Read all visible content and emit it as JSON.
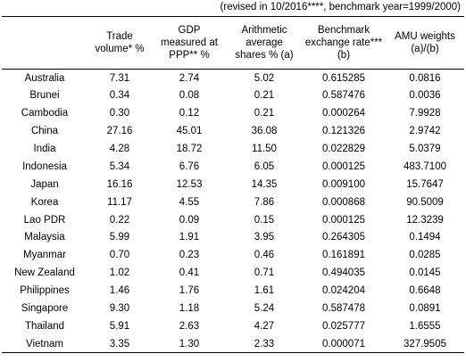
{
  "note": "(revised in 10/2016****, benchmark year=1999/2000)",
  "headers": [
    {
      "lines": [
        ""
      ]
    },
    {
      "lines": [
        "Trade",
        "volume*  %"
      ]
    },
    {
      "lines": [
        "GDP",
        "measured at",
        "PPP**  %"
      ]
    },
    {
      "lines": [
        "Arithmetic",
        "average",
        "shares %  (a)"
      ]
    },
    {
      "lines": [
        "Benchmark",
        "exchange rate***",
        "(b)"
      ]
    },
    {
      "lines": [
        "AMU weights",
        "(a)/(b)"
      ]
    }
  ],
  "rows": [
    [
      "Australia",
      "7.31",
      "2.74",
      "5.02",
      "0.615285",
      "0.0816"
    ],
    [
      "Brunei",
      "0.34",
      "0.08",
      "0.21",
      "0.587476",
      "0.0036"
    ],
    [
      "Cambodia",
      "0.30",
      "0.12",
      "0.21",
      "0.000264",
      "7.9928"
    ],
    [
      "China",
      "27.16",
      "45.01",
      "36.08",
      "0.121326",
      "2.9742"
    ],
    [
      "India",
      "4.28",
      "18.72",
      "11.50",
      "0.022829",
      "5.0379"
    ],
    [
      "Indonesia",
      "5.34",
      "6.76",
      "6.05",
      "0.000125",
      "483.7100"
    ],
    [
      "Japan",
      "16.16",
      "12.53",
      "14.35",
      "0.009100",
      "15.7647"
    ],
    [
      "Korea",
      "11.17",
      "4.55",
      "7.86",
      "0.000868",
      "90.5009"
    ],
    [
      "Lao PDR",
      "0.22",
      "0.09",
      "0.15",
      "0.000125",
      "12.3239"
    ],
    [
      "Malaysia",
      "5.99",
      "1.91",
      "3.95",
      "0.264305",
      "0.1494"
    ],
    [
      "Myanmar",
      "0.70",
      "0.23",
      "0.46",
      "0.161891",
      "0.0285"
    ],
    [
      "New Zealand",
      "1.02",
      "0.41",
      "0.71",
      "0.494035",
      "0.0145"
    ],
    [
      "Philippines",
      "1.46",
      "1.76",
      "1.61",
      "0.024204",
      "0.6648"
    ],
    [
      "Singapore",
      "9.30",
      "1.18",
      "5.24",
      "0.587478",
      "0.0891"
    ],
    [
      "Thailand",
      "5.91",
      "2.63",
      "4.27",
      "0.025777",
      "1.6555"
    ],
    [
      "Vietnam",
      "3.35",
      "1.30",
      "2.33",
      "0.000071",
      "327.9505"
    ]
  ]
}
